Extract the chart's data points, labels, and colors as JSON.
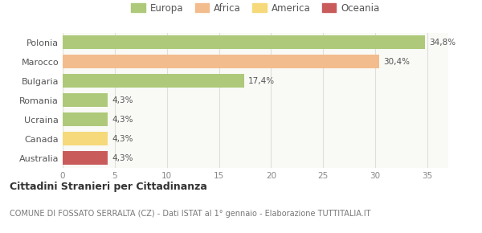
{
  "categories": [
    "Polonia",
    "Marocco",
    "Bulgaria",
    "Romania",
    "Ucraina",
    "Canada",
    "Australia"
  ],
  "values": [
    34.8,
    30.4,
    17.4,
    4.3,
    4.3,
    4.3,
    4.3
  ],
  "labels": [
    "34,8%",
    "30,4%",
    "17,4%",
    "4,3%",
    "4,3%",
    "4,3%",
    "4,3%"
  ],
  "bar_colors": [
    "#aec97a",
    "#f2bc8c",
    "#aec97a",
    "#aec97a",
    "#aec97a",
    "#f5d97a",
    "#c95b5b"
  ],
  "legend_items": [
    {
      "label": "Europa",
      "color": "#aec97a"
    },
    {
      "label": "Africa",
      "color": "#f2bc8c"
    },
    {
      "label": "America",
      "color": "#f5d97a"
    },
    {
      "label": "Oceania",
      "color": "#c95b5b"
    }
  ],
  "xlim": [
    0,
    37
  ],
  "xticks": [
    0,
    5,
    10,
    15,
    20,
    25,
    30,
    35
  ],
  "title": "Cittadini Stranieri per Cittadinanza",
  "subtitle": "COMUNE DI FOSSATO SERRALTA (CZ) - Dati ISTAT al 1° gennaio - Elaborazione TUTTITALIA.IT",
  "background_color": "#ffffff",
  "plot_bg_color": "#f9f9f6",
  "grid_color": "#e0e0d8"
}
